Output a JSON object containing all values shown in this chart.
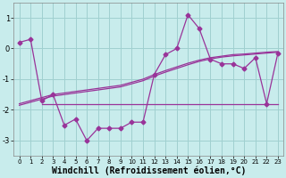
{
  "xlabel": "Windchill (Refroidissement éolien,°C)",
  "ylabel": "",
  "background_color": "#c8ecec",
  "grid_color": "#a0d0d0",
  "line_color": "#993399",
  "x": [
    0,
    1,
    2,
    3,
    4,
    5,
    6,
    7,
    8,
    9,
    10,
    11,
    12,
    13,
    14,
    15,
    16,
    17,
    18,
    19,
    20,
    21,
    22,
    23
  ],
  "y_main": [
    0.2,
    0.3,
    -1.7,
    -1.5,
    -2.5,
    -2.3,
    -3.0,
    -2.6,
    -2.6,
    -2.6,
    -2.4,
    -2.4,
    -0.85,
    -0.2,
    0.0,
    1.1,
    0.65,
    -0.35,
    -0.5,
    -0.5,
    -0.65,
    -0.3,
    -1.8,
    -0.15
  ],
  "y_flat": [
    null,
    null,
    -1.8,
    -1.8,
    -1.8,
    -1.8,
    -1.8,
    -1.8,
    -1.8,
    -1.8,
    -1.8,
    -1.8,
    -1.8,
    -1.8,
    -1.8,
    -1.8,
    -1.8,
    -1.8,
    -1.8,
    -1.8,
    -1.8,
    -1.8,
    -1.8,
    -1.8
  ],
  "y_rising": [
    -1.8,
    -1.7,
    -1.6,
    -1.5,
    -1.45,
    -1.4,
    -1.35,
    -1.3,
    -1.25,
    -1.2,
    -1.1,
    -1.0,
    -0.85,
    -0.72,
    -0.6,
    -0.48,
    -0.38,
    -0.3,
    -0.25,
    -0.2,
    -0.18,
    -0.15,
    -0.12,
    -0.1
  ],
  "y_rising2": [
    -1.85,
    -1.75,
    -1.65,
    -1.55,
    -1.5,
    -1.45,
    -1.4,
    -1.35,
    -1.3,
    -1.25,
    -1.15,
    -1.05,
    -0.9,
    -0.77,
    -0.65,
    -0.53,
    -0.42,
    -0.34,
    -0.28,
    -0.24,
    -0.21,
    -0.18,
    -0.15,
    -0.12
  ],
  "ylim": [
    -3.5,
    1.5
  ],
  "xlim": [
    -0.5,
    23.5
  ],
  "yticks": [
    -3,
    -2,
    -1,
    0,
    1
  ],
  "xticks": [
    0,
    1,
    2,
    3,
    4,
    5,
    6,
    7,
    8,
    9,
    10,
    11,
    12,
    13,
    14,
    15,
    16,
    17,
    18,
    19,
    20,
    21,
    22,
    23
  ],
  "tick_fontsize": 6,
  "xlabel_fontsize": 7,
  "marker": "D",
  "markersize": 2.5,
  "linewidth": 0.9
}
